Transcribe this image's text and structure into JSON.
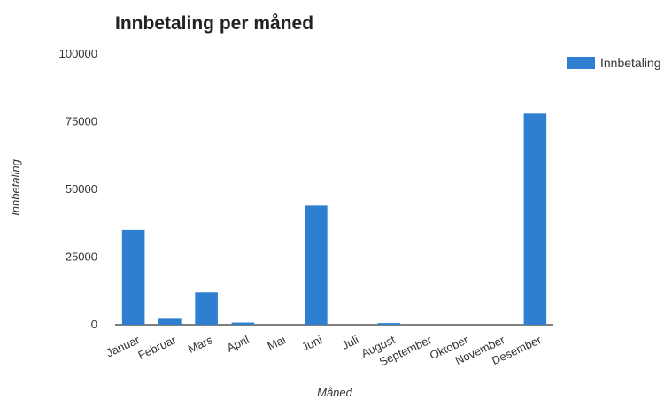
{
  "chart_data": {
    "type": "bar",
    "title": "Innbetaling per måned",
    "xlabel": "Måned",
    "ylabel": "Innbetaling",
    "categories": [
      "Januar",
      "Februar",
      "Mars",
      "April",
      "Mai",
      "Juni",
      "Juli",
      "August",
      "September",
      "Oktober",
      "November",
      "Desember"
    ],
    "series": [
      {
        "name": "Innbetaling",
        "values": [
          35000,
          2500,
          12000,
          800,
          0,
          44000,
          0,
          600,
          0,
          0,
          0,
          78000
        ]
      }
    ],
    "ylim": [
      0,
      100000
    ],
    "yticks": [
      "0",
      "25000",
      "50000",
      "75000",
      "100000"
    ],
    "grid": false,
    "legend_position": "top-right",
    "colors": {
      "bar": "#2f7fd1",
      "axis": "#555555"
    }
  }
}
